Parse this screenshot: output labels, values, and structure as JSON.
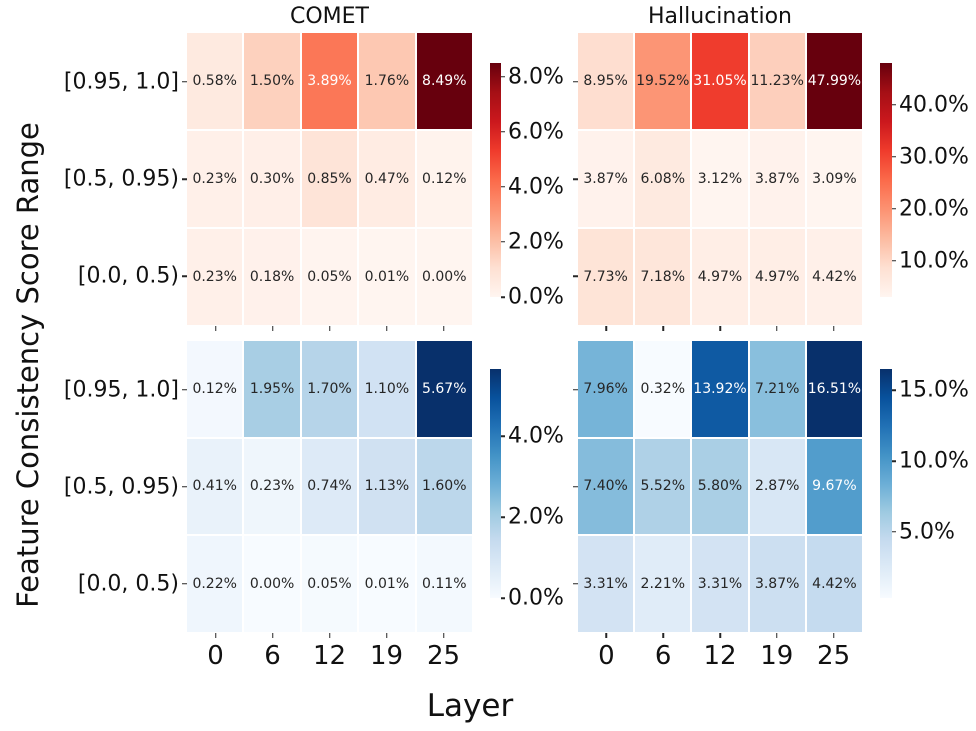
{
  "figure": {
    "ylabel": "Feature Consistency Score Range",
    "xlabel": "Layer",
    "background": "#ffffff",
    "text_color": "#111111"
  },
  "annotation_colors": {
    "dark": "#262626",
    "light": "#ffffff"
  },
  "colormaps": {
    "Reds": [
      "#fff5f0",
      "#fee0d2",
      "#fcbba1",
      "#fc9272",
      "#fb6a4a",
      "#ef3b2c",
      "#cb181d",
      "#a50f15",
      "#67000d"
    ],
    "Blues": [
      "#f7fbff",
      "#deebf7",
      "#c6dbef",
      "#9ecae1",
      "#6baed6",
      "#4292c6",
      "#2171b5",
      "#08519c",
      "#08306b"
    ]
  },
  "chart_data": [
    {
      "id": "comet-red-heatmap",
      "type": "heatmap",
      "title": "COMET",
      "cmap": "Reds",
      "row_labels": [
        "[0.95, 1.0]",
        "[0.5, 0.95)",
        "[0.0, 0.5)"
      ],
      "col_labels": [
        "0",
        "6",
        "12",
        "19",
        "25"
      ],
      "values": [
        [
          0.58,
          1.5,
          3.89,
          1.76,
          8.49
        ],
        [
          0.23,
          0.3,
          0.85,
          0.47,
          0.12
        ],
        [
          0.23,
          0.18,
          0.05,
          0.01,
          0.0
        ]
      ],
      "vmin": 0.0,
      "vmax": 8.49,
      "colorbar_ticks": [
        {
          "label": "0.0%",
          "value": 0.0
        },
        {
          "label": "2.0%",
          "value": 2.0
        },
        {
          "label": "4.0%",
          "value": 4.0
        },
        {
          "label": "6.0%",
          "value": 6.0
        },
        {
          "label": "8.0%",
          "value": 8.0
        }
      ]
    },
    {
      "id": "hallucination-red-heatmap",
      "type": "heatmap",
      "title": "Hallucination",
      "cmap": "Reds",
      "row_labels": [
        "[0.95, 1.0]",
        "[0.5, 0.95)",
        "[0.0, 0.5)"
      ],
      "col_labels": [
        "0",
        "6",
        "12",
        "19",
        "25"
      ],
      "values": [
        [
          8.95,
          19.52,
          31.05,
          11.23,
          47.99
        ],
        [
          3.87,
          6.08,
          3.12,
          3.87,
          3.09
        ],
        [
          7.73,
          7.18,
          4.97,
          4.97,
          4.42
        ]
      ],
      "vmin": 3.09,
      "vmax": 47.99,
      "colorbar_ticks": [
        {
          "label": "10.0%",
          "value": 10.0
        },
        {
          "label": "20.0%",
          "value": 20.0
        },
        {
          "label": "30.0%",
          "value": 30.0
        },
        {
          "label": "40.0%",
          "value": 40.0
        }
      ]
    },
    {
      "id": "comet-blue-heatmap",
      "type": "heatmap",
      "title": "",
      "cmap": "Blues",
      "row_labels": [
        "[0.95, 1.0]",
        "[0.5, 0.95)",
        "[0.0, 0.5)"
      ],
      "col_labels": [
        "0",
        "6",
        "12",
        "19",
        "25"
      ],
      "values": [
        [
          0.12,
          1.95,
          1.7,
          1.1,
          5.67
        ],
        [
          0.41,
          0.23,
          0.74,
          1.13,
          1.6
        ],
        [
          0.22,
          0.0,
          0.05,
          0.01,
          0.11
        ]
      ],
      "vmin": 0.0,
      "vmax": 5.67,
      "colorbar_ticks": [
        {
          "label": "0.0%",
          "value": 0.0
        },
        {
          "label": "2.0%",
          "value": 2.0
        },
        {
          "label": "4.0%",
          "value": 4.0
        }
      ]
    },
    {
      "id": "hallucination-blue-heatmap",
      "type": "heatmap",
      "title": "",
      "cmap": "Blues",
      "row_labels": [
        "[0.95, 1.0]",
        "[0.5, 0.95)",
        "[0.0, 0.5)"
      ],
      "col_labels": [
        "0",
        "6",
        "12",
        "19",
        "25"
      ],
      "values": [
        [
          7.96,
          0.32,
          13.92,
          7.21,
          16.51
        ],
        [
          7.4,
          5.52,
          5.8,
          2.87,
          9.67
        ],
        [
          3.31,
          2.21,
          3.31,
          3.87,
          4.42
        ]
      ],
      "vmin": 0.32,
      "vmax": 16.51,
      "colorbar_ticks": [
        {
          "label": "5.0%",
          "value": 5.0
        },
        {
          "label": "10.0%",
          "value": 10.0
        },
        {
          "label": "15.0%",
          "value": 15.0
        }
      ]
    }
  ]
}
